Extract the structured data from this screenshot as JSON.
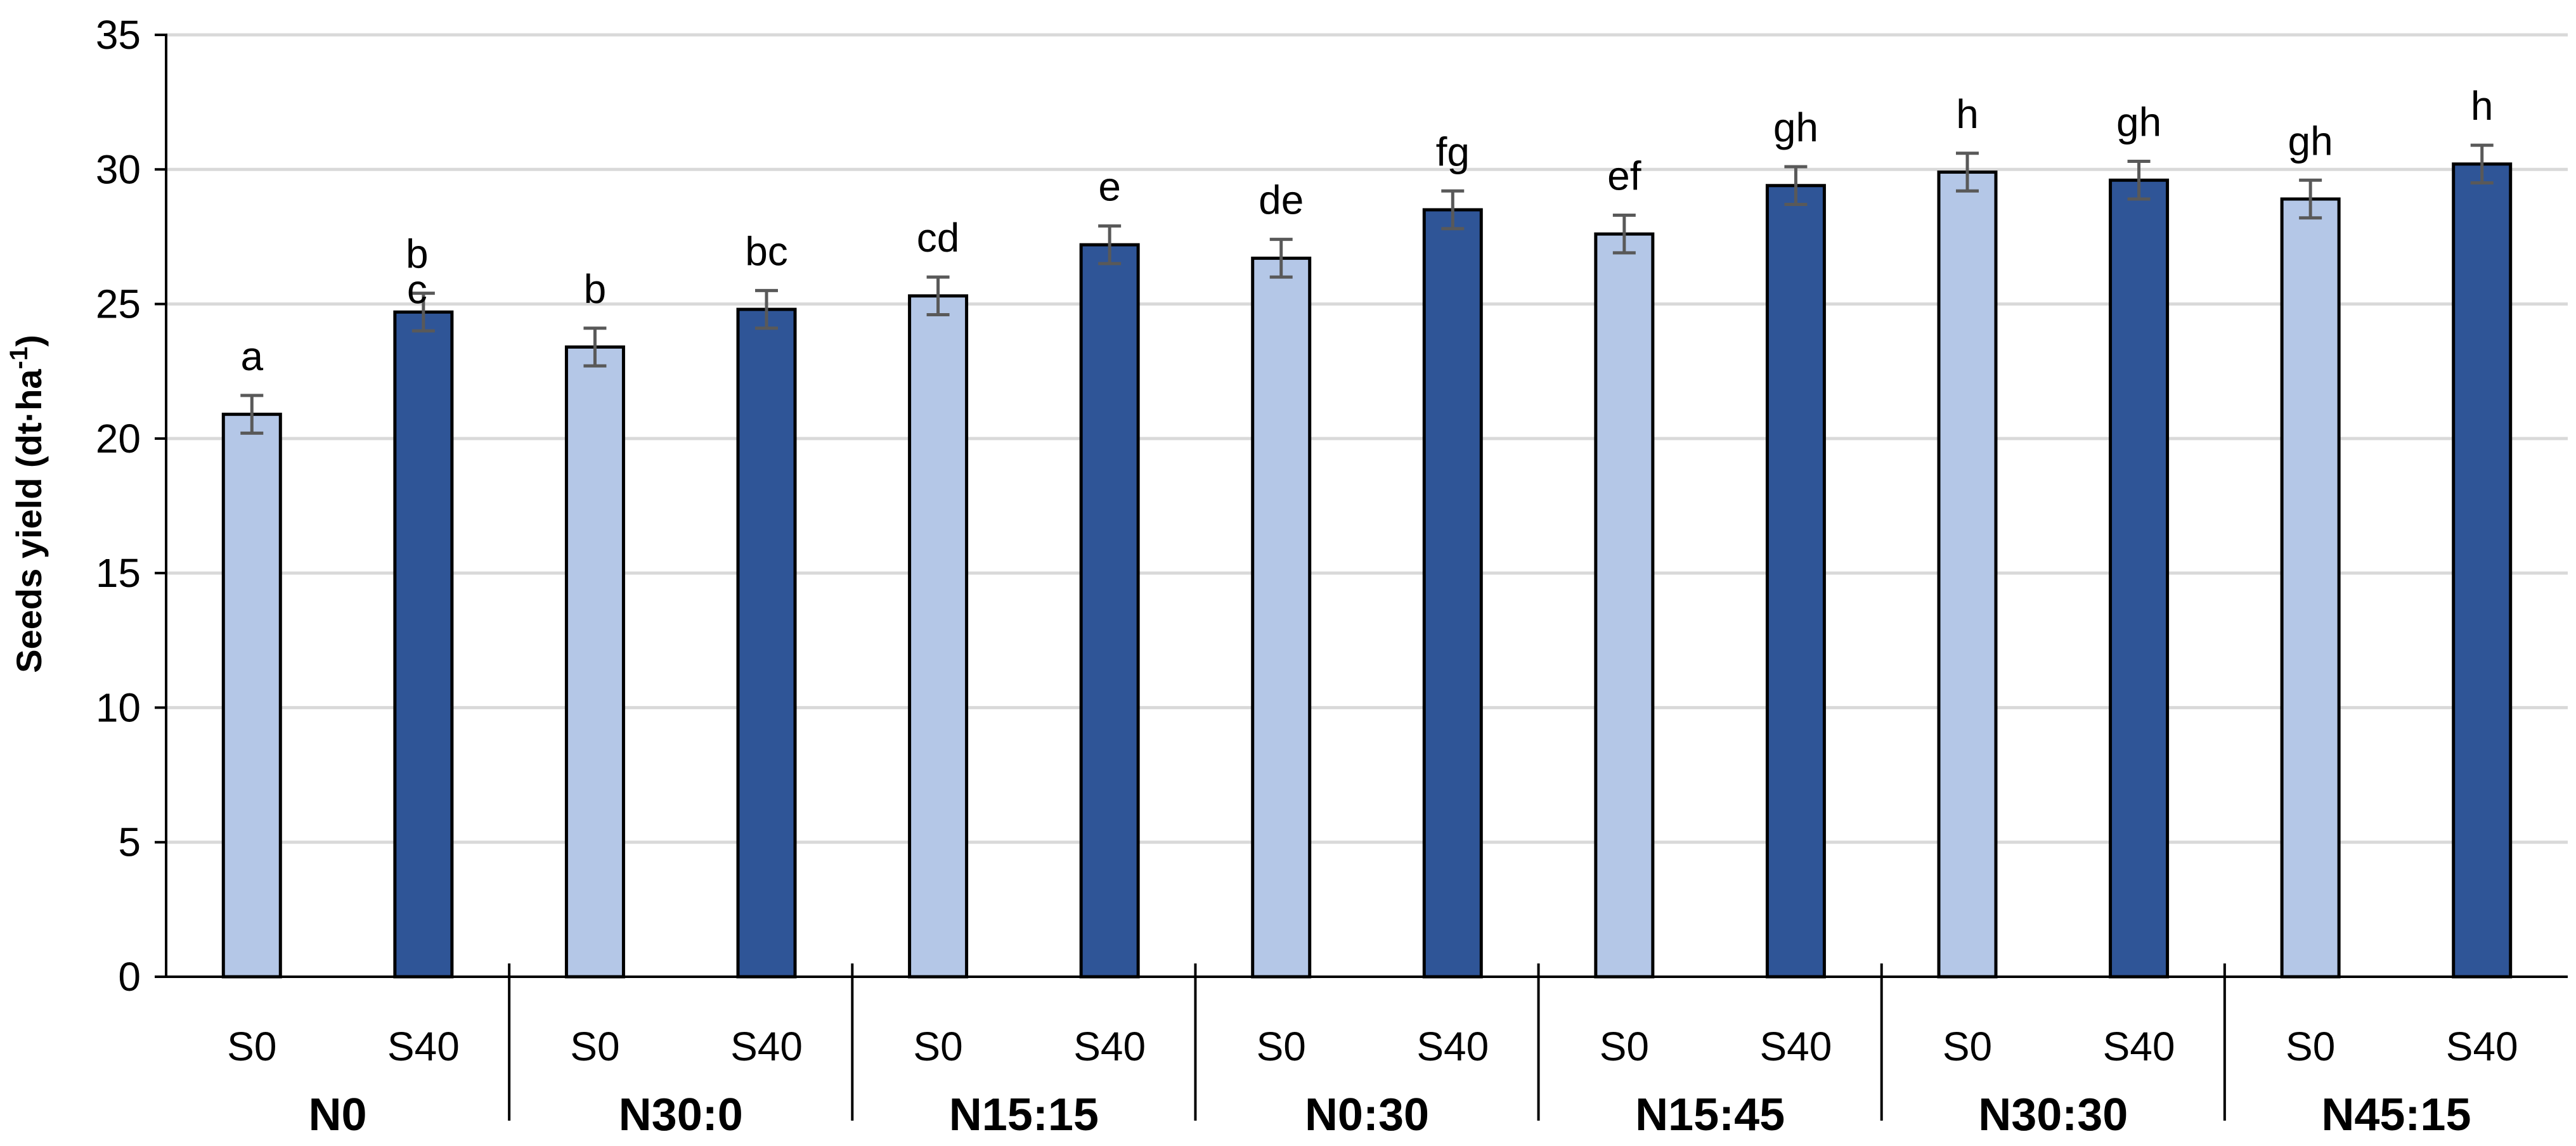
{
  "chart_data": {
    "type": "bar",
    "title": "",
    "ylabel": "Seeds yield (dt·ha⁻¹)",
    "ylabel_base": "Seeds yield (dt·ha",
    "ylabel_sup": "-1",
    "ylabel_tail": ")",
    "ylim": [
      0,
      35
    ],
    "ytick_step": 5,
    "yticks": [
      "0",
      "5",
      "10",
      "15",
      "20",
      "25",
      "30",
      "35"
    ],
    "grid": true,
    "groups": [
      "N0",
      "N30:0",
      "N15:15",
      "N0:30",
      "N15:45",
      "N30:30",
      "N45:15"
    ],
    "subcategories": [
      "S0",
      "S40"
    ],
    "colors": {
      "S0": "#b4c7e7",
      "S40": "#2f5597",
      "error_bar": "#595959",
      "grid": "#d9d9d9",
      "axis": "#000000"
    },
    "series": [
      {
        "name": "S0",
        "values": [
          20.9,
          23.4,
          25.3,
          26.7,
          27.6,
          29.9,
          28.9
        ],
        "errors": [
          0.7,
          0.7,
          0.7,
          0.7,
          0.7,
          0.7,
          0.7
        ],
        "letters": [
          "a",
          "b",
          "cd",
          "de",
          "ef",
          "h",
          "gh"
        ]
      },
      {
        "name": "S40",
        "values": [
          24.7,
          24.8,
          27.2,
          28.5,
          29.4,
          29.6,
          30.2
        ],
        "errors": [
          0.7,
          0.7,
          0.7,
          0.7,
          0.7,
          0.7,
          0.7
        ],
        "letters": [
          "b\nc",
          "bc",
          "e",
          "fg",
          "gh",
          "gh",
          "h"
        ]
      }
    ]
  }
}
